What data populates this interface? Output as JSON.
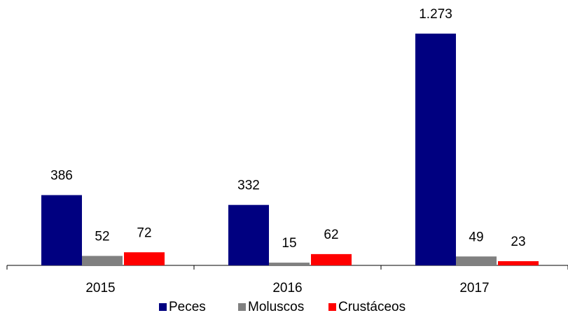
{
  "chart_data": {
    "type": "bar",
    "categories": [
      "2015",
      "2016",
      "2017"
    ],
    "series": [
      {
        "name": "Peces",
        "color": "#000080",
        "values": [
          386,
          332,
          1273
        ],
        "value_labels": [
          "386",
          "332",
          "1.273"
        ]
      },
      {
        "name": "Moluscos",
        "color": "#808080",
        "values": [
          52,
          15,
          49
        ]
      },
      {
        "name": "Crustáceos",
        "color": "#ff0000",
        "values": [
          72,
          62,
          23
        ]
      }
    ],
    "legend": "bottom"
  }
}
